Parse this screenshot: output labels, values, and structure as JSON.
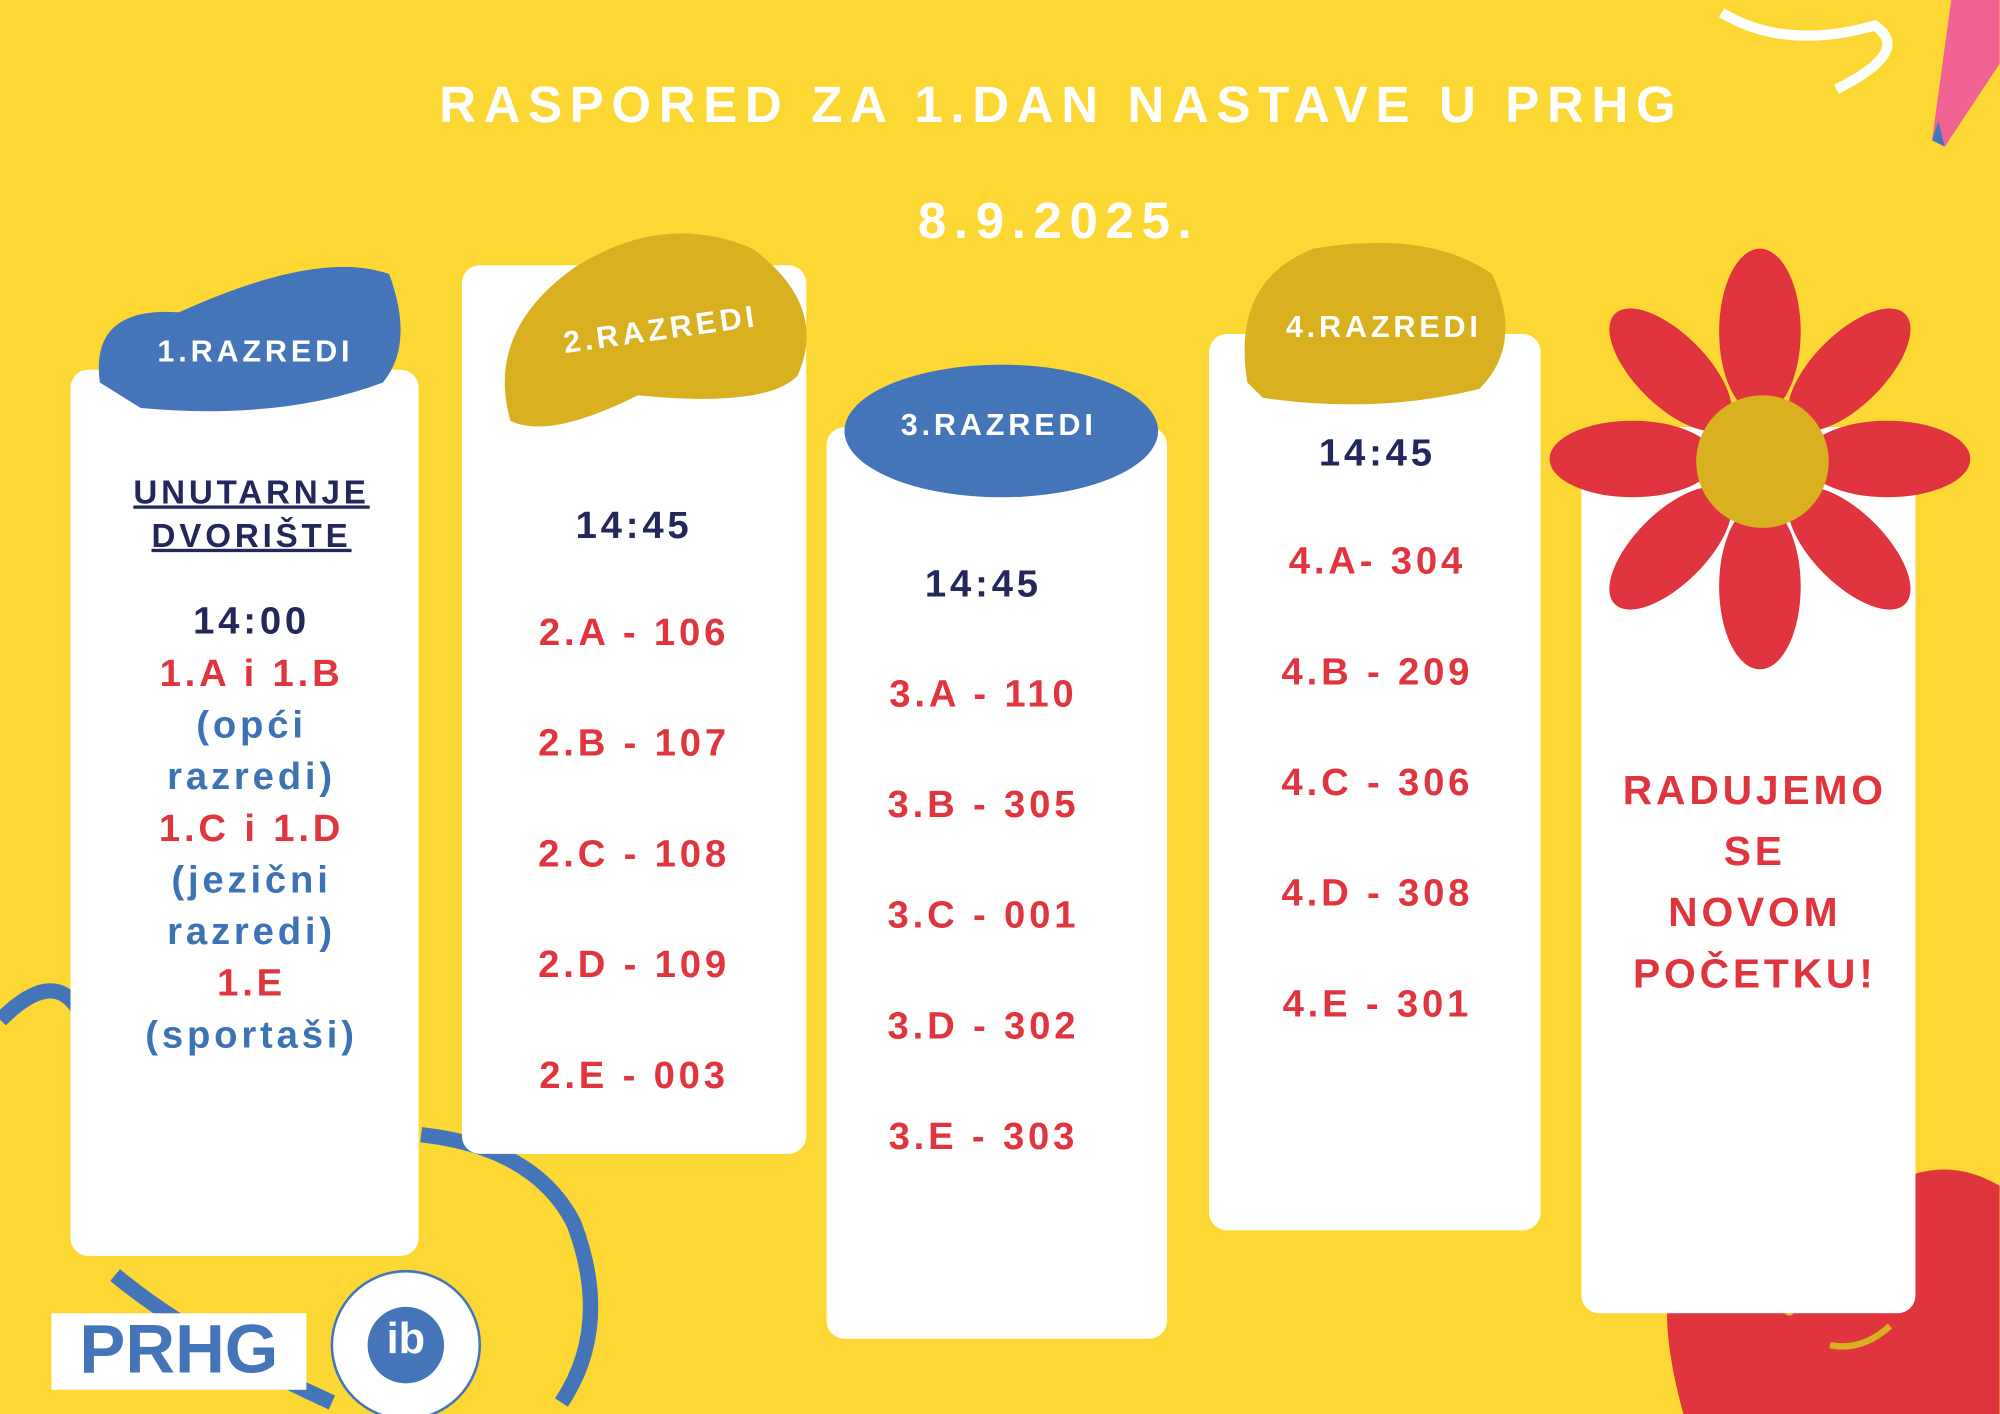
{
  "header": {
    "title": "RASPORED ZA 1.DAN NASTAVE U PRHG",
    "date": "8.9.2025."
  },
  "columns": [
    {
      "label": "1.RAZREDI",
      "place": [
        "UNUTARNJE",
        "DVORIŠTE"
      ],
      "time": "14:00",
      "groups": [
        {
          "classes": "1.A i 1.B",
          "note": [
            "(opći",
            "razredi)"
          ]
        },
        {
          "classes": "1.C i 1.D",
          "note": [
            "(jezični",
            "razredi)"
          ]
        },
        {
          "classes": "1.E",
          "note": [
            "(sportaši)"
          ]
        }
      ]
    },
    {
      "label": "2.RAZREDI",
      "time": "14:45",
      "rooms": [
        "2.A - 106",
        "2.B - 107",
        "2.C - 108",
        "2.D - 109",
        "2.E - 003"
      ]
    },
    {
      "label": "3.RAZREDI",
      "time": "14:45",
      "rooms": [
        "3.A - 110",
        "3.B - 305",
        "3.C - 001",
        "3.D - 302",
        "3.E - 303"
      ]
    },
    {
      "label": "4.RAZREDI",
      "time": "14:45",
      "rooms": [
        "4.A- 304",
        "4.B - 209",
        "4.C - 306",
        "4.D - 308",
        "4.E - 301"
      ]
    }
  ],
  "closing": [
    "RADUJEMO",
    "SE",
    "NOVOM",
    "POČETKU!"
  ],
  "logos": {
    "school": "PRHG",
    "ib": "ib"
  }
}
